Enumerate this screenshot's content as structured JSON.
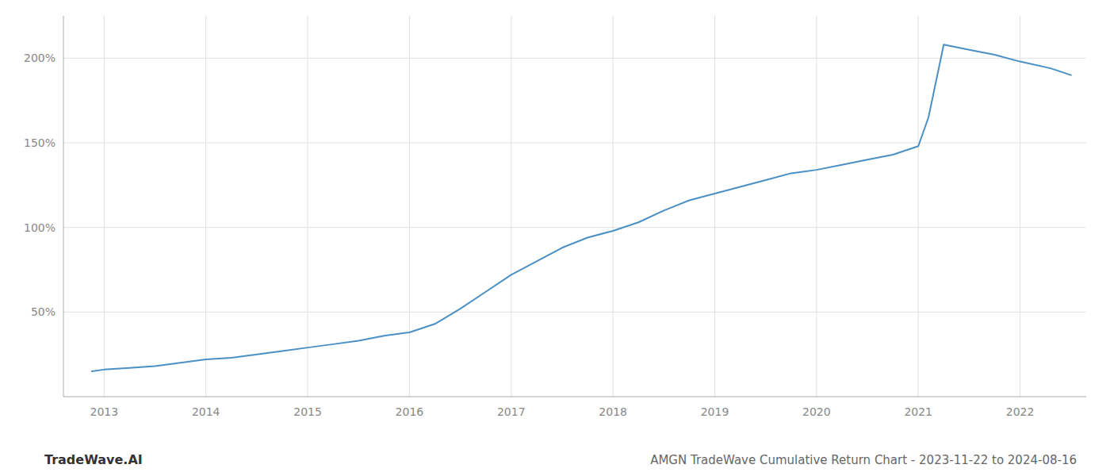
{
  "chart_data": {
    "type": "line",
    "title": "AMGN TradeWave Cumulative Return Chart - 2023-11-22 to 2024-08-16",
    "annotations": [
      "TradeWave.AI"
    ],
    "x": [
      2012.88,
      2013.0,
      2013.25,
      2013.5,
      2013.75,
      2014.0,
      2014.25,
      2014.5,
      2014.75,
      2015.0,
      2015.25,
      2015.5,
      2015.75,
      2016.0,
      2016.25,
      2016.5,
      2016.75,
      2017.0,
      2017.25,
      2017.5,
      2017.75,
      2018.0,
      2018.25,
      2018.5,
      2018.75,
      2019.0,
      2019.25,
      2019.5,
      2019.75,
      2020.0,
      2020.25,
      2020.5,
      2020.75,
      2021.0,
      2021.1,
      2021.25,
      2021.5,
      2021.75,
      2022.0,
      2022.3,
      2022.5
    ],
    "values": [
      15,
      16,
      17,
      18,
      20,
      22,
      23,
      25,
      27,
      29,
      31,
      33,
      36,
      38,
      43,
      52,
      62,
      72,
      80,
      88,
      94,
      98,
      103,
      110,
      116,
      120,
      124,
      128,
      132,
      134,
      137,
      140,
      143,
      148,
      165,
      208,
      205,
      202,
      198,
      194,
      190
    ],
    "color": "#4a90c4",
    "xlim": [
      2012.6,
      2022.65
    ],
    "xticks": [
      2013,
      2014,
      2015,
      2016,
      2017,
      2018,
      2019,
      2020,
      2021,
      2022
    ],
    "ylim": [
      0,
      225
    ],
    "yticks": [
      {
        "value": 50,
        "label": "50%"
      },
      {
        "value": 100,
        "label": "100%"
      },
      {
        "value": 150,
        "label": "150%"
      },
      {
        "value": 200,
        "label": "200%"
      }
    ],
    "grid": true
  }
}
